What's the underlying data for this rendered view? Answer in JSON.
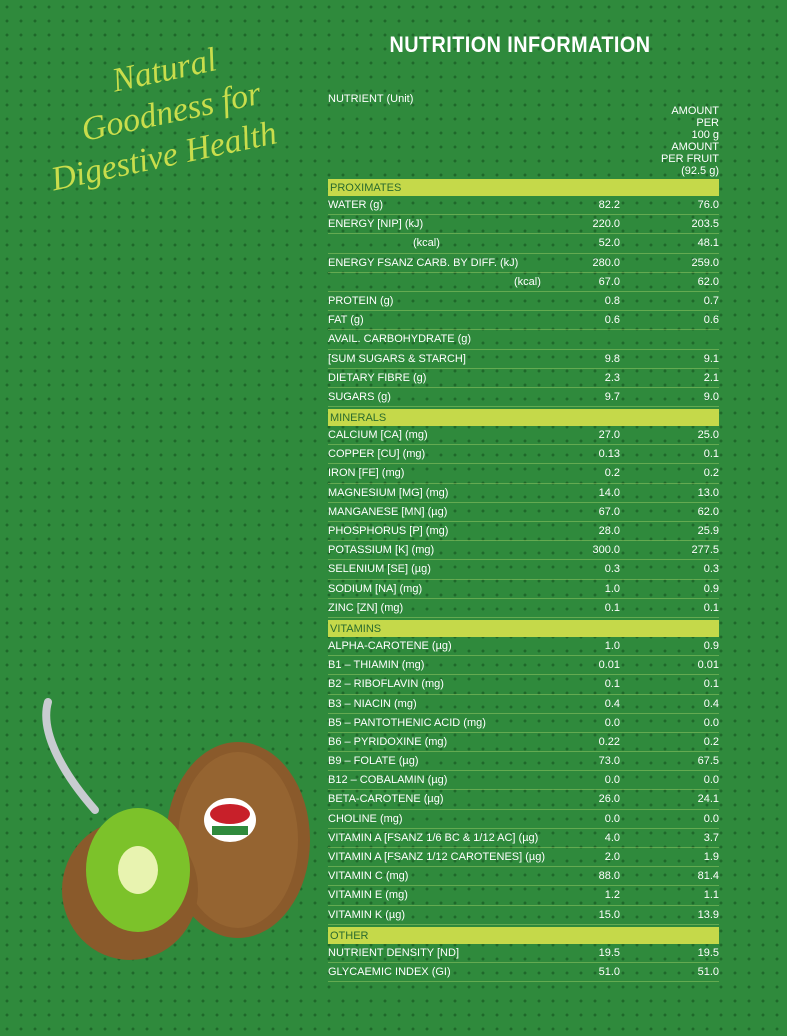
{
  "header": {
    "title": "NUTRITION INFORMATION",
    "tagline": [
      "Natural",
      "Goodness for",
      "Digestive Health"
    ]
  },
  "table": {
    "columns": [
      [
        "NUTRIENT (Unit)"
      ],
      [
        "AMOUNT",
        "PER",
        "100 g"
      ],
      [
        "AMOUNT",
        "PER FRUIT",
        "(92.5 g)"
      ]
    ],
    "sections": [
      {
        "title": "PROXIMATES",
        "rows": [
          [
            "WATER (g)",
            "82.2",
            "76.0"
          ],
          [
            "ENERGY [NIP] (kJ)",
            "220.0",
            "203.5"
          ],
          [
            "(kcal)",
            "52.0",
            "48.1"
          ],
          [
            "ENERGY FSANZ CARB. BY DIFF. (kJ)",
            "280.0",
            "259.0"
          ],
          [
            "(kcal)",
            "67.0",
            "62.0"
          ],
          [
            "PROTEIN (g)",
            "0.8",
            "0.7"
          ],
          [
            "FAT (g)",
            "0.6",
            "0.6"
          ],
          [
            "AVAIL. CARBOHYDRATE (g)"
          ],
          [
            "[SUM SUGARS & STARCH]",
            "9.8",
            "9.1"
          ],
          [
            "DIETARY FIBRE (g)",
            "2.3",
            "2.1"
          ],
          [
            "SUGARS (g)",
            "9.7",
            "9.0"
          ]
        ]
      },
      {
        "title": "MINERALS",
        "rows": [
          [
            "CALCIUM [CA] (mg)",
            "27.0",
            "25.0"
          ],
          [
            "COPPER [CU] (mg)",
            "0.13",
            "0.1"
          ],
          [
            "IRON [FE] (mg)",
            "0.2",
            "0.2"
          ],
          [
            "MAGNESIUM [MG] (mg)",
            "14.0",
            "13.0"
          ],
          [
            "MANGANESE [MN] (µg)",
            "67.0",
            "62.0"
          ],
          [
            "PHOSPHORUS [P] (mg)",
            "28.0",
            "25.9"
          ],
          [
            "POTASSIUM [K] (mg)",
            "300.0",
            "277.5"
          ],
          [
            "SELENIUM [SE] (µg)",
            "0.3",
            "0.3"
          ],
          [
            "SODIUM [NA] (mg)",
            "1.0",
            "0.9"
          ],
          [
            "ZINC [ZN] (mg)",
            "0.1",
            "0.1"
          ]
        ]
      },
      {
        "title": "VITAMINS",
        "rows": [
          [
            "ALPHA-CAROTENE (µg)",
            "1.0",
            "0.9"
          ],
          [
            "B1 – THIAMIN (mg)",
            "0.01",
            "0.01"
          ],
          [
            "B2 – RIBOFLAVIN (mg)",
            "0.1",
            "0.1"
          ],
          [
            "B3 – NIACIN (mg)",
            "0.4",
            "0.4"
          ],
          [
            "B5 – PANTOTHENIC ACID (mg)",
            "0.0",
            "0.0"
          ],
          [
            "B6 – PYRIDOXINE (mg)",
            "0.22",
            "0.2"
          ],
          [
            "B9 – FOLATE (µg)",
            "73.0",
            "67.5"
          ],
          [
            "B12 – COBALAMIN (µg)",
            "0.0",
            "0.0"
          ],
          [
            "BETA-CAROTENE (µg)",
            "26.0",
            "24.1"
          ],
          [
            "CHOLINE (mg)",
            "0.0",
            "0.0"
          ],
          [
            "VITAMIN A [FSANZ 1/6 BC & 1/12 AC] (µg)",
            "4.0",
            "3.7"
          ],
          [
            "VITAMIN A [FSANZ 1/12 CAROTENES] (µg)",
            "2.0",
            "1.9"
          ],
          [
            "VITAMIN C (mg)",
            "88.0",
            "81.4"
          ],
          [
            "VITAMIN E (mg)",
            "1.2",
            "1.1"
          ],
          [
            "VITAMIN K (µg)",
            "15.0",
            "13.9"
          ]
        ]
      },
      {
        "title": "OTHER",
        "rows": [
          [
            "NUTRIENT DENSITY [ND]",
            "19.5",
            "19.5"
          ],
          [
            "GLYCAEMIC INDEX (GI)",
            "51.0",
            "51.0"
          ]
        ]
      }
    ]
  }
}
